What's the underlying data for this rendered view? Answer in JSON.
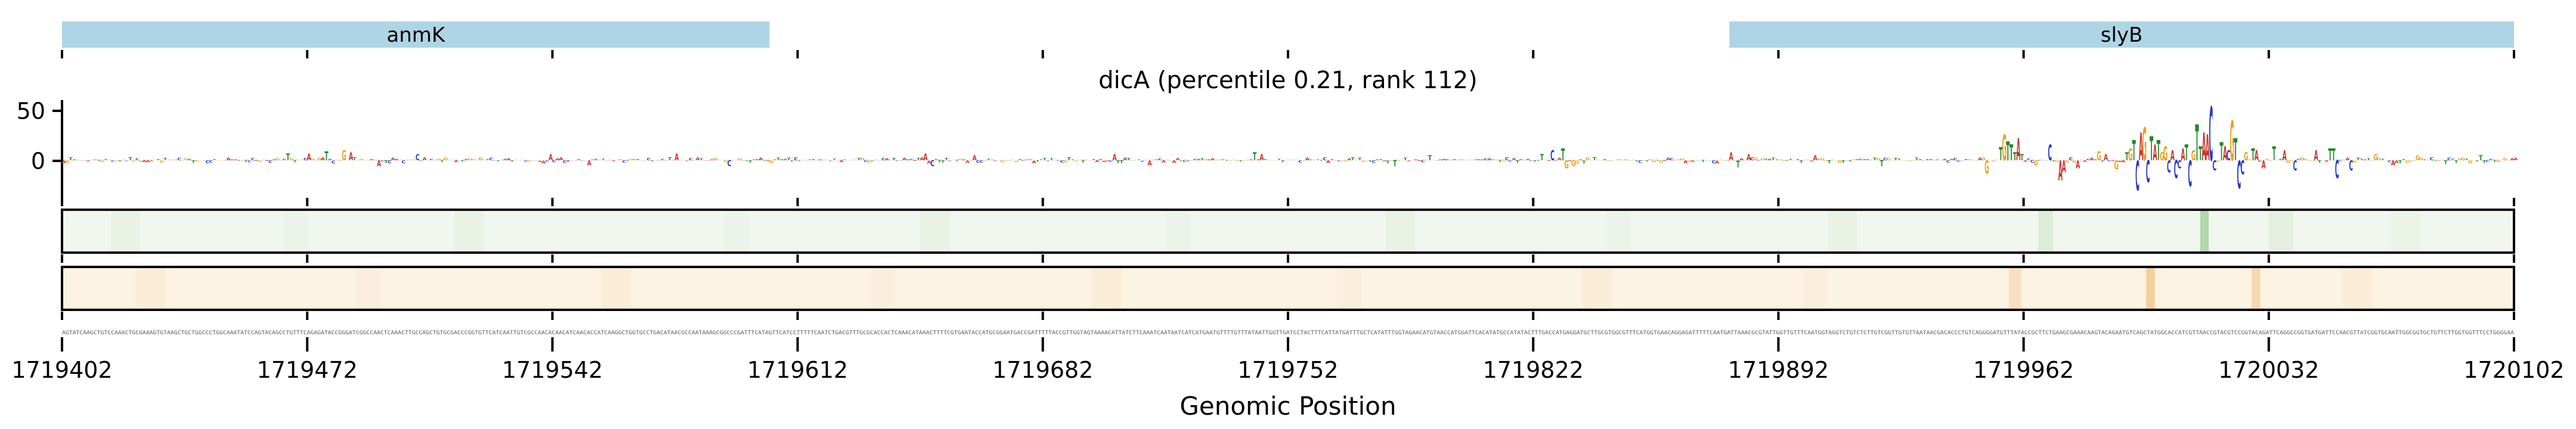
{
  "chart_data": {
    "type": "genomic-saliency-logo",
    "title": "dicA (percentile 0.21, rank 112)",
    "xlabel": "Genomic Position",
    "x_range": [
      1719402,
      1720102
    ],
    "x_ticks": [
      1719402,
      1719472,
      1719542,
      1719612,
      1719682,
      1719752,
      1719822,
      1719892,
      1719962,
      1720032,
      1720102
    ],
    "y_ticks": [
      50,
      0
    ],
    "grid": false,
    "legend": null,
    "genes": [
      {
        "name": "anmK",
        "start": 1719402,
        "end": 1719604,
        "color": "#aed5e5"
      },
      {
        "name": "slyB",
        "start": 1719878,
        "end": 1720102,
        "color": "#aed5e5"
      }
    ],
    "base_colors": {
      "A": "#d03028",
      "C": "#2438c8",
      "G": "#f0a01e",
      "T": "#1e8a28"
    },
    "sequence": "AGTATCAAGCTGTCCAAACTGCGAAAGTGTAAGCTGCTGGCCCTGGCAAATATCCAGTACAGCCTGTTTCAGAGATACCGGGATCGGCCAACTCAAACTTGCCAGCTGTGCGACCCGGTGTTCATCAATTGTCGCCAACACAACATCAACACCATCAAGGCTGGTGCCTGACATAACGCCAATAAAGCGGCCCGATTTCATAGTTCATCCTTTTTCAATCTGACGTTTGCGCACCACTCAAACATAAACTTTTCGTGAATACCATGCGGAATGACCGATTTTTACCGTTGGTAGTAAAACATTATCTTCAAATCAATAATCATCATGAATGTTTTGTTTATAATTGGTTGATCCTACTTTCATTATGATTTGCTCATATTTGGTAGAACATGTAACCATGGATTCACATATGCCATATACTTTGACCATGAGGATGCTTGCGTGGCGTTTCATGGTGAACAGGAGATTTTTCAATGATTAAACGCGTATTGGTTGTTTCAATGGTAGGTCTGTCTCTTGTCGGTTGTGTTAATAACGACACCCTGTCAGGGGATGTTTATACCGCTTCTGAAGCGAAACAAGTACAGAATGTCAGCTATGGCACCATCGTTAACCGTACGTCCGGTACAGATTCAGGCCGGTGATGATTCCAACGTTATCGGTGCAATTGGCGGTGCTGTTCTTGGTGGTTTCCTGGGGAA",
    "logo_peaks": {
      "64": 7,
      "70": 7,
      "75": 9,
      "80": 10,
      "82": 8,
      "90": -6,
      "101": 6,
      "139": 6,
      "150": -5,
      "175": 7,
      "190": -6,
      "246": 7,
      "248": -6,
      "260": 5,
      "300": 6,
      "310": -5,
      "340": 8,
      "342": 6,
      "380": -6,
      "390": 5,
      "422": 6,
      "425": 10,
      "428": 12,
      "429": -8,
      "431": -6,
      "476": 8,
      "478": -7,
      "481": 6,
      "500": 5,
      "519": -6,
      "549": -13,
      "553": 13,
      "554": 26,
      "555": 19,
      "556": 16,
      "557": 8,
      "558": 22,
      "559": 6,
      "563": -5,
      "567": 16,
      "570": -20,
      "571": -12,
      "575": -8,
      "581": 9,
      "583": 6,
      "586": -9,
      "589": 8,
      "590": 12,
      "591": 20,
      "592": -30,
      "593": 28,
      "594": 33,
      "595": -22,
      "596": 24,
      "597": 16,
      "598": 20,
      "599": 8,
      "600": 14,
      "601": -12,
      "602": 10,
      "603": -18,
      "604": -8,
      "605": 12,
      "606": 16,
      "607": -26,
      "608": 10,
      "609": 36,
      "610": 14,
      "611": 28,
      "612": 26,
      "613": 54,
      "614": -10,
      "616": 18,
      "617": 14,
      "618": 10,
      "619": 40,
      "620": 22,
      "621": -28,
      "622": -14,
      "623": 8,
      "625": 12,
      "626": 10,
      "628": -8,
      "631": 14,
      "634": 10,
      "637": -10,
      "643": 10,
      "647": 12,
      "648": 12,
      "649": -18,
      "653": -10,
      "660": 6,
      "665": -5,
      "672": 5,
      "680": -4,
      "690": 5
    },
    "noise": {
      "seed": 7,
      "amp": 3.2
    },
    "tracks": [
      {
        "name": "track-green",
        "fill": "#f1f7ef",
        "border": "#000000",
        "stripes": [
          {
            "f": 0.02,
            "w": 0.012,
            "color": "#e9f2e5"
          },
          {
            "f": 0.09,
            "w": 0.01,
            "color": "#ecf4e9"
          },
          {
            "f": 0.16,
            "w": 0.012,
            "color": "#e9f2e5"
          },
          {
            "f": 0.27,
            "w": 0.01,
            "color": "#ecf4e9"
          },
          {
            "f": 0.35,
            "w": 0.012,
            "color": "#e9f2e5"
          },
          {
            "f": 0.45,
            "w": 0.01,
            "color": "#ecf4e9"
          },
          {
            "f": 0.54,
            "w": 0.012,
            "color": "#e9f2e5"
          },
          {
            "f": 0.63,
            "w": 0.01,
            "color": "#ecf4e9"
          },
          {
            "f": 0.72,
            "w": 0.012,
            "color": "#e9f2e5"
          },
          {
            "f": 0.806,
            "w": 0.006,
            "color": "#dcecd6"
          },
          {
            "f": 0.872,
            "w": 0.0035,
            "color": "#b2d8ab"
          },
          {
            "f": 0.9,
            "w": 0.01,
            "color": "#e4efdf"
          },
          {
            "f": 0.95,
            "w": 0.012,
            "color": "#eaf3e6"
          }
        ]
      },
      {
        "name": "track-beige",
        "fill": "#fdf3e3",
        "border": "#000000",
        "stripes": [
          {
            "f": 0.03,
            "w": 0.012,
            "color": "#fbecd8"
          },
          {
            "f": 0.12,
            "w": 0.01,
            "color": "#fceedd"
          },
          {
            "f": 0.22,
            "w": 0.012,
            "color": "#fbecd8"
          },
          {
            "f": 0.33,
            "w": 0.01,
            "color": "#fceedd"
          },
          {
            "f": 0.42,
            "w": 0.012,
            "color": "#fbecd8"
          },
          {
            "f": 0.52,
            "w": 0.01,
            "color": "#fceedd"
          },
          {
            "f": 0.62,
            "w": 0.012,
            "color": "#fbecd8"
          },
          {
            "f": 0.71,
            "w": 0.01,
            "color": "#fceedd"
          },
          {
            "f": 0.794,
            "w": 0.005,
            "color": "#f8dfc0"
          },
          {
            "f": 0.85,
            "w": 0.0035,
            "color": "#f4cf9e"
          },
          {
            "f": 0.893,
            "w": 0.0035,
            "color": "#f6d9b2"
          },
          {
            "f": 0.93,
            "w": 0.012,
            "color": "#fbecd8"
          }
        ]
      }
    ]
  }
}
